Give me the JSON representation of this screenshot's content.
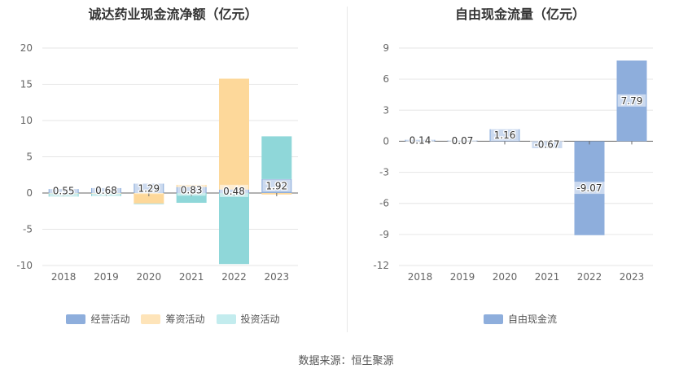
{
  "chart_data": [
    {
      "type": "bar",
      "title": "诚达药业现金流净额（亿元）",
      "categories": [
        "2018",
        "2019",
        "2020",
        "2021",
        "2022",
        "2023"
      ],
      "series": [
        {
          "name": "经营活动",
          "color": "#8eaedc",
          "values": [
            0.55,
            0.68,
            1.29,
            0.83,
            0.48,
            1.92
          ]
        },
        {
          "name": "筹资活动",
          "color": "#fdd89a",
          "values": [
            -0.05,
            -0.08,
            -1.45,
            0.3,
            15.3,
            -0.2
          ]
        },
        {
          "name": "投资活动",
          "color": "#8fd7d9",
          "values": [
            -0.45,
            -0.35,
            -0.08,
            -1.35,
            -9.8,
            5.9
          ]
        }
      ],
      "data_labels": [
        "0.55",
        "0.68",
        "1.29",
        "0.83",
        "0.48",
        "1.92"
      ],
      "yticks": [
        "-10",
        "-5",
        "0",
        "5",
        "10",
        "15",
        "20"
      ],
      "ylim": [
        -10,
        20
      ],
      "stacked": true,
      "grid": true,
      "legend_position": "bottom"
    },
    {
      "type": "bar",
      "title": "自由现金流量（亿元）",
      "categories": [
        "2018",
        "2019",
        "2020",
        "2021",
        "2022",
        "2023"
      ],
      "series": [
        {
          "name": "自由现金流",
          "color": "#8eaedc",
          "values": [
            0.14,
            0.07,
            1.16,
            -0.67,
            -9.07,
            7.79
          ]
        }
      ],
      "data_labels": [
        "0.14",
        "0.07",
        "1.16",
        "-0.67",
        "-9.07",
        "7.79"
      ],
      "yticks": [
        "-12",
        "-9",
        "-6",
        "-3",
        "0",
        "3",
        "6",
        "9"
      ],
      "ylim": [
        -12,
        9
      ],
      "grid": true,
      "legend_position": "bottom"
    }
  ],
  "source_text": "数据来源：恒生聚源"
}
